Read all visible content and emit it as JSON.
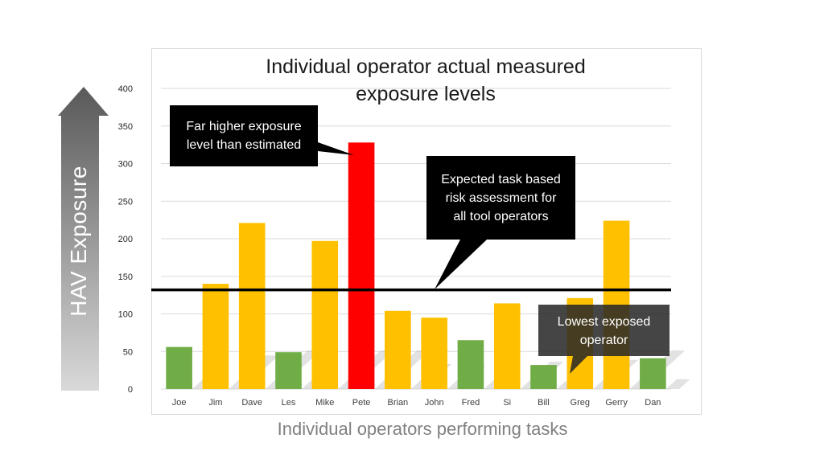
{
  "slide": {
    "y_arrow_label": "HAV Exposure",
    "x_axis_title": "Individual operators performing tasks"
  },
  "chart_data": {
    "type": "bar",
    "title": "Individual operator actual measured\nexposure levels",
    "categories": [
      "Joe",
      "Jim",
      "Dave",
      "Les",
      "Mike",
      "Pete",
      "Brian",
      "John",
      "Fred",
      "Si",
      "Bill",
      "Greg",
      "Gerry",
      "Dan"
    ],
    "values": [
      56,
      140,
      221,
      49,
      197,
      328,
      104,
      95,
      65,
      114,
      32,
      121,
      224,
      41
    ],
    "bar_colors": [
      "#70ad47",
      "#ffc000",
      "#ffc000",
      "#70ad47",
      "#ffc000",
      "#ff0000",
      "#ffc000",
      "#ffc000",
      "#70ad47",
      "#ffc000",
      "#70ad47",
      "#ffc000",
      "#ffc000",
      "#70ad47"
    ],
    "ylim": [
      0,
      400
    ],
    "yticks": [
      0,
      50,
      100,
      150,
      200,
      250,
      300,
      350,
      400
    ],
    "grid": true,
    "reference_line": {
      "value": 132,
      "color": "#000000"
    }
  },
  "callouts": {
    "pete": "Far higher exposure\nlevel than estimated",
    "expected": "Expected task based\nrisk assessment  for\nall tool operators",
    "lowest": "Lowest  exposed\noperator"
  },
  "colors": {
    "green": "#70ad47",
    "amber": "#ffc000",
    "red": "#ff0000",
    "callout": "#000000",
    "callout_transparent": "#262626",
    "arrow_top": "#595959",
    "arrow_bottom": "#d9d9d9"
  }
}
